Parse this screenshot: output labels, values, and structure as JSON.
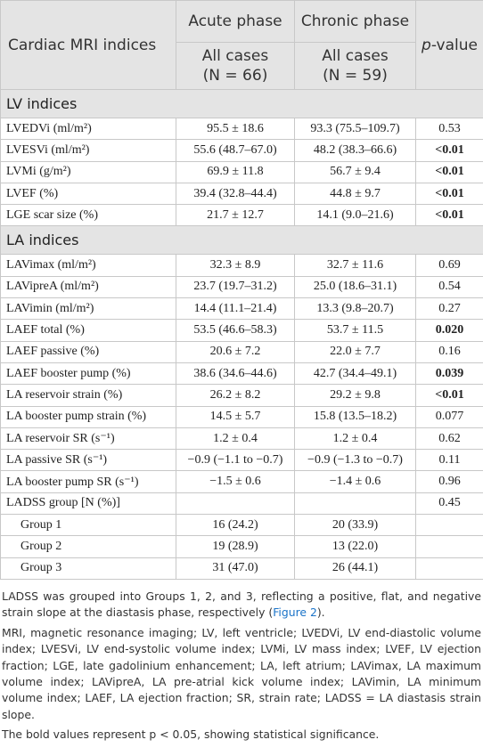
{
  "header": {
    "index_col": "Cardiac MRI indices",
    "acute_phase": "Acute phase",
    "chronic_phase": "Chronic phase",
    "p_value": {
      "italic": "p",
      "rest": "-value"
    },
    "acute_sub": [
      "All cases",
      "(N = 66)"
    ],
    "chronic_sub": [
      "All cases",
      "(N = 59)"
    ]
  },
  "sections": [
    {
      "title": "LV indices",
      "rows": [
        {
          "index": "LVEDVi (ml/m²)",
          "acute": "95.5 ± 18.6",
          "chronic": "93.3 (75.5–109.7)",
          "p": "0.53",
          "bold": false
        },
        {
          "index": "LVESVi (ml/m²)",
          "acute": "55.6 (48.7–67.0)",
          "chronic": "48.2 (38.3–66.6)",
          "p": "<0.01",
          "bold": true
        },
        {
          "index": "LVMi (g/m²)",
          "acute": "69.9 ± 11.8",
          "chronic": "56.7 ± 9.4",
          "p": "<0.01",
          "bold": true
        },
        {
          "index": "LVEF (%)",
          "acute": "39.4 (32.8–44.4)",
          "chronic": "44.8 ± 9.7",
          "p": "<0.01",
          "bold": true
        },
        {
          "index": "LGE scar size (%)",
          "acute": "21.7 ± 12.7",
          "chronic": "14.1 (9.0–21.6)",
          "p": "<0.01",
          "bold": true
        }
      ]
    },
    {
      "title": "LA indices",
      "rows": [
        {
          "index": "LAVimax (ml/m²)",
          "acute": "32.3 ± 8.9",
          "chronic": "32.7 ± 11.6",
          "p": "0.69",
          "bold": false
        },
        {
          "index": "LAVipreA (ml/m²)",
          "acute": "23.7 (19.7–31.2)",
          "chronic": "25.0 (18.6–31.1)",
          "p": "0.54",
          "bold": false
        },
        {
          "index": "LAVimin (ml/m²)",
          "acute": "14.4 (11.1–21.4)",
          "chronic": "13.3 (9.8–20.7)",
          "p": "0.27",
          "bold": false
        },
        {
          "index": "LAEF total (%)",
          "acute": "53.5 (46.6–58.3)",
          "chronic": "53.7 ± 11.5",
          "p": "0.020",
          "bold": true
        },
        {
          "index": "LAEF passive (%)",
          "acute": "20.6 ± 7.2",
          "chronic": "22.0 ± 7.7",
          "p": "0.16",
          "bold": false
        },
        {
          "index": "LAEF booster pump (%)",
          "acute": "38.6 (34.6–44.6)",
          "chronic": "42.7 (34.4–49.1)",
          "p": "0.039",
          "bold": true
        },
        {
          "index": "LA reservoir strain (%)",
          "acute": "26.2 ± 8.2",
          "chronic": "29.2 ± 9.8",
          "p": "<0.01",
          "bold": true
        },
        {
          "index": "LA booster pump strain (%)",
          "acute": "14.5 ± 5.7",
          "chronic": "15.8 (13.5–18.2)",
          "p": "0.077",
          "bold": false
        },
        {
          "index": "LA reservoir SR (s⁻¹)",
          "acute": "1.2 ± 0.4",
          "chronic": "1.2 ± 0.4",
          "p": "0.62",
          "bold": false
        },
        {
          "index": "LA passive SR (s⁻¹)",
          "acute": "−0.9 (−1.1 to −0.7)",
          "chronic": "−0.9 (−1.3 to −0.7)",
          "p": "0.11",
          "bold": false
        },
        {
          "index": "LA booster pump SR (s⁻¹)",
          "acute": "−1.5 ± 0.6",
          "chronic": "−1.4 ± 0.6",
          "p": "0.96",
          "bold": false
        },
        {
          "index": "LADSS group [N (%)]",
          "p": "0.45",
          "bold": false
        },
        {
          "index": "Group 1",
          "acute": "16 (24.2)",
          "chronic": "20 (33.9)",
          "indent": true
        },
        {
          "index": "Group 2",
          "acute": "19 (28.9)",
          "chronic": "13 (22.0)",
          "indent": true
        },
        {
          "index": "Group 3",
          "acute": "31 (47.0)",
          "chronic": "26 (44.1)",
          "indent": true
        }
      ]
    }
  ],
  "footnotes": {
    "grouping": [
      "LADSS was grouped into Groups 1, 2, and 3, reflecting a positive, flat, and negative strain slope at the diastasis phase, respectively (",
      "Figure 2",
      ")."
    ],
    "abbreviations": "MRI, magnetic resonance imaging; LV, left ventricle; LVEDVi, LV end-diastolic volume index; LVESVi, LV end-systolic volume index; LVMi, LV mass index; LVEF, LV ejection fraction; LGE, late gadolinium enhancement; LA, left atrium; LAVimax, LA maximum volume index; LAVipreA, LA pre-atrial kick volume index; LAVimin, LA minimum volume index; LAEF, LA ejection fraction; SR, strain rate; LADSS = LA diastasis strain slope.",
    "bold_note": "The bold values represent p < 0.05, showing statistical significance."
  }
}
